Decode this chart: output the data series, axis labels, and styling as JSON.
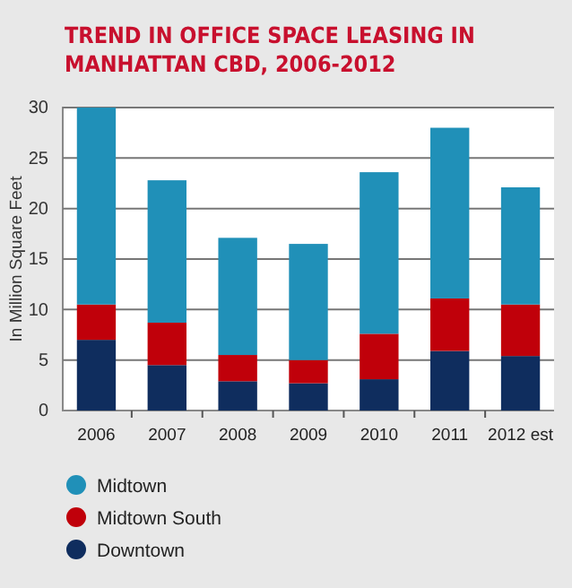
{
  "chart_data": {
    "type": "bar",
    "title": "TREND IN OFFICE SPACE LEASING IN MANHATTAN CBD, 2006-2012",
    "ylabel": "In Million Square Feet",
    "categories": [
      "2006",
      "2007",
      "2008",
      "2009",
      "2010",
      "2011",
      "2012 est"
    ],
    "stacked": true,
    "series": [
      {
        "name": "Downtown",
        "color": "#0f2d5e",
        "values": [
          7.0,
          4.5,
          2.9,
          2.7,
          3.1,
          5.9,
          5.4
        ]
      },
      {
        "name": "Midtown South",
        "color": "#c0000a",
        "values": [
          3.5,
          4.2,
          2.6,
          2.3,
          4.5,
          5.2,
          5.1
        ]
      },
      {
        "name": "Midtown",
        "color": "#2090b8",
        "values": [
          19.5,
          14.1,
          11.6,
          11.5,
          16.0,
          16.9,
          11.6
        ]
      }
    ],
    "ylim": [
      0,
      30
    ],
    "yticks": [
      0,
      5,
      10,
      15,
      20,
      25,
      30
    ],
    "grid": "y",
    "legend": "bottom"
  }
}
